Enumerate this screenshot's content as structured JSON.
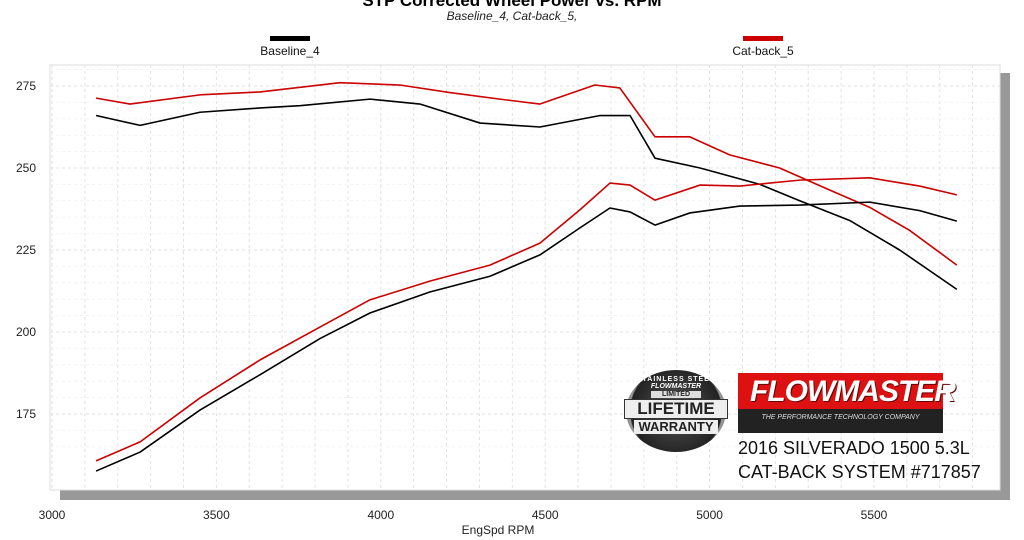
{
  "chart_data": {
    "type": "line",
    "title": "STP Corrected Wheel Power vs. RPM",
    "subtitle": "Baseline_4, Cat-back_5,",
    "xlabel": "EngSpd  RPM",
    "ylabel": "",
    "xlim": [
      3000,
      5800
    ],
    "ylim": [
      150,
      283
    ],
    "xticks": [
      3000,
      3500,
      4000,
      4500,
      5000,
      5500
    ],
    "yticks": [
      175,
      200,
      225,
      250,
      275
    ],
    "grid": true,
    "legend_placement": "top",
    "legend": [
      {
        "name": "Baseline_4",
        "color": "#000000"
      },
      {
        "name": "Cat-back_5",
        "color": "#cc0000"
      }
    ],
    "series": [
      {
        "name": "Baseline_4 torque",
        "color": "#000000",
        "x": [
          3134,
          3268,
          3450,
          3633,
          3754,
          3967,
          4119,
          4302,
          4484,
          4667,
          4758,
          4834,
          4971,
          5153,
          5274,
          5426,
          5578,
          5752
        ],
        "y": [
          266,
          263,
          267,
          268.3,
          269,
          271,
          269.5,
          263.7,
          262.5,
          266,
          266,
          253,
          250,
          245,
          240,
          234,
          225,
          213
        ]
      },
      {
        "name": "Cat-back_5 torque",
        "color": "#cc0000",
        "x": [
          3134,
          3237,
          3450,
          3633,
          3876,
          4058,
          4210,
          4362,
          4484,
          4651,
          4727,
          4834,
          4940,
          5061,
          5213,
          5365,
          5487,
          5608,
          5752
        ],
        "y": [
          271.3,
          269.5,
          272.3,
          273.2,
          276,
          275.3,
          273,
          271,
          269.5,
          275.3,
          274.4,
          259.5,
          259.5,
          254,
          250,
          243.3,
          238,
          231,
          220.4
        ]
      },
      {
        "name": "Baseline_4 power",
        "color": "#000000",
        "x": [
          3134,
          3268,
          3450,
          3633,
          3815,
          3967,
          4149,
          4332,
          4484,
          4605,
          4697,
          4758,
          4834,
          4940,
          5092,
          5274,
          5487,
          5639,
          5752
        ],
        "y": [
          157.6,
          163.4,
          176.2,
          187,
          198,
          205.8,
          212.2,
          217,
          223.5,
          231.7,
          237.8,
          236.6,
          232.6,
          236.3,
          238.4,
          238.7,
          239.6,
          237,
          233.8
        ]
      },
      {
        "name": "Cat-back_5 power",
        "color": "#cc0000",
        "x": [
          3134,
          3268,
          3450,
          3633,
          3815,
          3967,
          4149,
          4332,
          4484,
          4605,
          4697,
          4758,
          4834,
          4971,
          5092,
          5274,
          5487,
          5639,
          5752
        ],
        "y": [
          160.7,
          166.5,
          179.9,
          191.5,
          201.5,
          209.8,
          215.5,
          220.4,
          227.1,
          237.2,
          245.4,
          244.8,
          240.2,
          244.8,
          244.5,
          246.3,
          247,
          244.5,
          241.8
        ]
      }
    ]
  },
  "logos": {
    "warranty": {
      "line1": "STAINLESS STEEL",
      "line2": "FLOWMASTER",
      "line3": "LIMITED",
      "line4": "LIFETIME",
      "line5": "WARRANTY"
    },
    "flowmaster": {
      "brand": "FLOWMASTER",
      "tagline": "THE PERFORMANCE TECHNOLOGY COMPANY"
    }
  },
  "caption": {
    "line1": "2016 SILVERADO 1500 5.3L",
    "line2": "CAT-BACK SYSTEM #717857"
  }
}
